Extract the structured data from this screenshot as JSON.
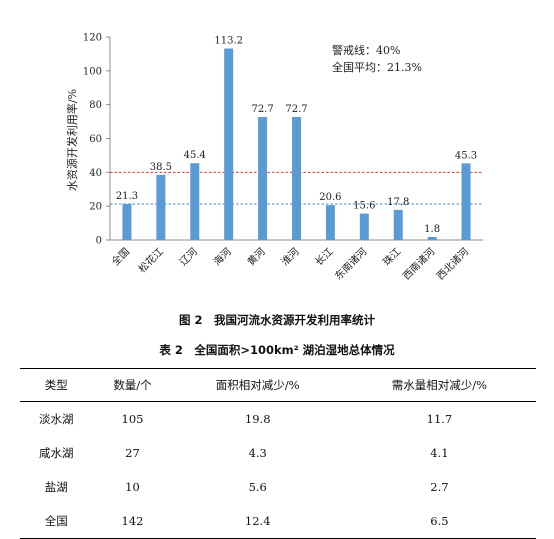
{
  "chart_data": {
    "type": "bar",
    "categories": [
      "全国",
      "松花江",
      "辽河",
      "海河",
      "黄河",
      "淮河",
      "长江",
      "东南诸河",
      "珠江",
      "西南诸河",
      "西北诸河"
    ],
    "values": [
      21.3,
      38.5,
      45.4,
      113.2,
      72.7,
      72.7,
      20.6,
      15.6,
      17.8,
      1.8,
      45.3
    ],
    "value_labels": [
      "21.3",
      "38.5",
      "45.4",
      "113.2",
      "72.7",
      "72.7",
      "20.6",
      "15.6",
      "17.8",
      "1.8",
      "45.3"
    ],
    "ylabel": "水资源开发利用率/%",
    "ylim": [
      0,
      120
    ],
    "yticks": [
      0,
      20,
      40,
      60,
      80,
      100,
      120
    ],
    "grid": false,
    "bar_color": "#5b9bd5",
    "reference_lines": [
      {
        "value": 40,
        "label": "警戒线：40%",
        "color": "#d9362c"
      },
      {
        "value": 21.3,
        "label": "全国平均：21.3%",
        "color": "#4a86c5"
      }
    ]
  },
  "figure_caption": "图 2　我国河流水资源开发利用率统计",
  "table": {
    "caption": "表 2　全国面积>100km² 湖泊湿地总体情况",
    "headers": [
      "类型",
      "数量/个",
      "面积相对减少/%",
      "需水量相对减少/%"
    ],
    "rows": [
      [
        "淡水湖",
        "105",
        "19.8",
        "11.7"
      ],
      [
        "咸水湖",
        "27",
        "4.3",
        "4.1"
      ],
      [
        "盐湖",
        "10",
        "5.6",
        "2.7"
      ],
      [
        "全国",
        "142",
        "12.4",
        "6.5"
      ]
    ]
  }
}
